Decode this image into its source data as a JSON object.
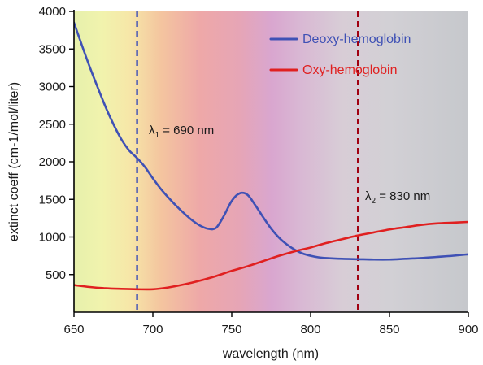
{
  "chart_data": {
    "type": "line",
    "title": "",
    "xlabel": "wavelength (nm)",
    "ylabel": "extinct coeff (cm-1/mol/liter)",
    "xlim": [
      650,
      900
    ],
    "ylim": [
      0,
      4000
    ],
    "xticks": [
      "650",
      "700",
      "750",
      "800",
      "850",
      "900"
    ],
    "yticks": [
      "500",
      "1000",
      "1500",
      "2000",
      "2500",
      "3000",
      "3500",
      "4000"
    ],
    "grid": false,
    "legend_position": "top-right",
    "background": "visible-spectrum gradient (yellow-green to red to magenta to grey)",
    "series": [
      {
        "name": "Deoxy-hemoglobin",
        "color": "#3f51b5",
        "x": [
          650,
          655,
          660,
          665,
          670,
          675,
          680,
          685,
          690,
          695,
          700,
          705,
          710,
          715,
          720,
          725,
          730,
          735,
          740,
          745,
          750,
          755,
          760,
          765,
          770,
          775,
          780,
          785,
          790,
          795,
          800,
          805,
          810,
          820,
          830,
          840,
          850,
          860,
          870,
          880,
          890,
          900
        ],
        "y": [
          3850,
          3550,
          3260,
          2990,
          2730,
          2500,
          2300,
          2150,
          2050,
          1930,
          1780,
          1640,
          1520,
          1410,
          1310,
          1220,
          1150,
          1110,
          1120,
          1280,
          1480,
          1580,
          1560,
          1420,
          1260,
          1110,
          990,
          900,
          830,
          780,
          750,
          730,
          720,
          710,
          705,
          700,
          700,
          710,
          720,
          735,
          750,
          770
        ]
      },
      {
        "name": "Oxy-hemoglobin",
        "color": "#e02020",
        "x": [
          650,
          660,
          670,
          680,
          690,
          700,
          710,
          720,
          730,
          740,
          750,
          760,
          770,
          780,
          790,
          800,
          810,
          820,
          830,
          840,
          850,
          860,
          870,
          880,
          890,
          900
        ],
        "y": [
          360,
          335,
          318,
          310,
          305,
          305,
          330,
          370,
          420,
          480,
          550,
          610,
          680,
          750,
          810,
          860,
          920,
          970,
          1020,
          1060,
          1100,
          1130,
          1160,
          1180,
          1190,
          1200
        ]
      }
    ],
    "annotations": [
      {
        "x": 690,
        "color": "#3f51b5",
        "lambda": "λ",
        "sub": "1",
        "text": " = 690 nm"
      },
      {
        "x": 830,
        "color": "#a00010",
        "lambda": "λ",
        "sub": "2",
        "text": " = 830 nm"
      }
    ]
  }
}
